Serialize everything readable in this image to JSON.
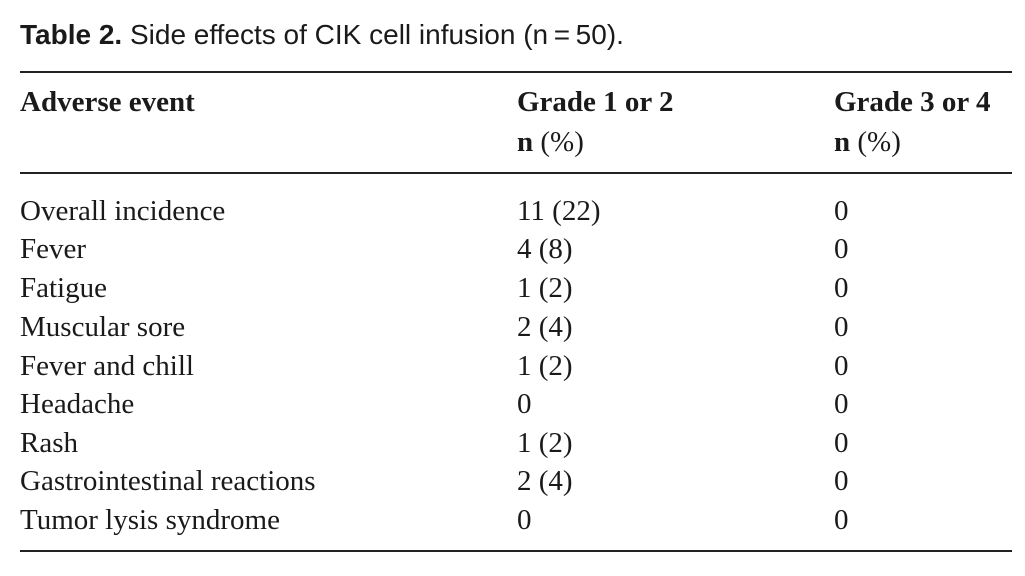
{
  "caption": {
    "label": "Table 2.",
    "text": "Side effects of CIK cell infusion (n = 50)."
  },
  "header": {
    "col1": "Adverse event",
    "col2_line1": "Grade 1 or 2",
    "col2_n": "n",
    "col2_pct": "(%)",
    "col3_line1": "Grade 3 or 4",
    "col3_n": "n",
    "col3_pct": "(%)"
  },
  "rows": [
    {
      "event": "Overall incidence",
      "grade12": "11 (22)",
      "grade34": "0"
    },
    {
      "event": "Fever",
      "grade12": "4 (8)",
      "grade34": "0"
    },
    {
      "event": "Fatigue",
      "grade12": "1 (2)",
      "grade34": "0"
    },
    {
      "event": "Muscular sore",
      "grade12": "2 (4)",
      "grade34": "0"
    },
    {
      "event": "Fever and chill",
      "grade12": "1 (2)",
      "grade34": "0"
    },
    {
      "event": "Headache",
      "grade12": "0",
      "grade34": "0"
    },
    {
      "event": "Rash",
      "grade12": "1 (2)",
      "grade34": "0"
    },
    {
      "event": "Gastrointestinal reactions",
      "grade12": "2 (4)",
      "grade34": "0"
    },
    {
      "event": "Tumor lysis syndrome",
      "grade12": "0",
      "grade34": "0"
    }
  ]
}
